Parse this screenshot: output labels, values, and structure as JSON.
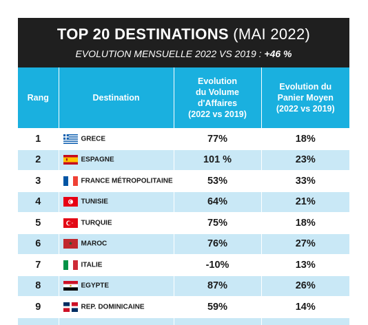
{
  "header": {
    "title_bold": "TOP 20 DESTINATIONS",
    "title_light": "(MAI 2022)",
    "subtitle_text": "EVOLUTION MENSUELLE 2022 VS 2019 :",
    "subtitle_value": "+46 %"
  },
  "table": {
    "headers": {
      "rank": "Rang",
      "destination": "Destination",
      "volume": [
        "Evolution",
        "du Volume",
        "d'Affaires",
        "(2022 vs 2019)"
      ],
      "basket": [
        "Evolution du",
        "Panier Moyen",
        "(2022 vs 2019)"
      ]
    },
    "rows": [
      {
        "rank": "1",
        "destination": "GRECE",
        "flag": "greece-flag-icon",
        "volume": "77%",
        "basket": "18%"
      },
      {
        "rank": "2",
        "destination": "ESPAGNE",
        "flag": "spain-flag-icon",
        "volume": "101 %",
        "basket": "23%"
      },
      {
        "rank": "3",
        "destination": "FRANCE MÉTROPOLITAINE",
        "flag": "france-flag-icon",
        "volume": "53%",
        "basket": "33%"
      },
      {
        "rank": "4",
        "destination": "TUNISIE",
        "flag": "tunisia-flag-icon",
        "volume": "64%",
        "basket": "21%"
      },
      {
        "rank": "5",
        "destination": "TURQUIE",
        "flag": "turkey-flag-icon",
        "volume": "75%",
        "basket": "18%"
      },
      {
        "rank": "6",
        "destination": "MAROC",
        "flag": "morocco-flag-icon",
        "volume": "76%",
        "basket": "27%"
      },
      {
        "rank": "7",
        "destination": "ITALIE",
        "flag": "italy-flag-icon",
        "volume": "-10%",
        "basket": "13%"
      },
      {
        "rank": "8",
        "destination": "EGYPTE",
        "flag": "egypt-flag-icon",
        "volume": "87%",
        "basket": "26%"
      },
      {
        "rank": "9",
        "destination": "REP. DOMINICAINE",
        "flag": "dominican-republic-flag-icon",
        "volume": "59%",
        "basket": "14%"
      }
    ]
  },
  "colors": {
    "header_bg": "#1f1f1f",
    "table_header_bg": "#1ab0df",
    "alt_row_bg": "#c9e8f6"
  }
}
